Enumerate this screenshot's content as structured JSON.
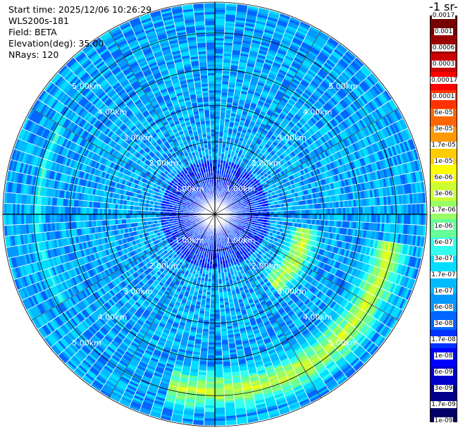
{
  "info": {
    "start_time": "Start time: 2025/12/06 10:26:29",
    "instrument": "WLS200s-181",
    "field": "Field: BETA",
    "elevation": "Elevation(deg): 35.00",
    "nrays": "NRays: 120"
  },
  "chart_data": {
    "type": "heatmap",
    "projection": "polar (PPI scan)",
    "nrays": 120,
    "elevation_deg": 35.0,
    "range_ring_labels": [
      "1.00km",
      "2.00km",
      "3.00km",
      "4.00km",
      "5.00km"
    ],
    "max_range_km": 5.85,
    "colorbar": {
      "title": "-1 sr-",
      "scale": "log",
      "colors": [
        "#000066",
        "#00008b",
        "#0000cd",
        "#0000ff",
        "#0033ff",
        "#0066ff",
        "#0099ff",
        "#00bbff",
        "#00ddff",
        "#33ffee",
        "#66ff99",
        "#99ff66",
        "#ccff33",
        "#ffff00",
        "#ffcc00",
        "#ff9900",
        "#ff6600",
        "#ff3300",
        "#ff0000",
        "#cc0000",
        "#990000",
        "#770000"
      ],
      "tick_labels": [
        "1e-09",
        "1.7e-09",
        "3e-09",
        "6e-09",
        "1e-08",
        "1.7e-08",
        "3e-08",
        "6e-08",
        "1e-07",
        "1.7e-07",
        "3e-07",
        "6e-07",
        "1e-06",
        "1.7e-06",
        "3e-06",
        "6e-06",
        "1e-05",
        "1.7e-05",
        "3e-05",
        "6e-05",
        "0.0001",
        "0.00017",
        "0.0003",
        "0.0006",
        "0.001",
        "0.0017"
      ]
    },
    "background_level": "3e-08",
    "features": [
      {
        "description": "enhanced backscatter arc",
        "range_km": [
          4.2,
          5.5
        ],
        "azimuth_deg": [
          100,
          195
        ],
        "peak_value": "1.7e-06"
      },
      {
        "description": "enhanced backscatter arc",
        "range_km": [
          2.0,
          3.0
        ],
        "azimuth_deg": [
          100,
          140
        ],
        "peak_value": "1.7e-06"
      },
      {
        "description": "weak ring",
        "range_km": [
          4.7,
          5.0
        ],
        "azimuth_deg": [
          240,
          300
        ],
        "peak_value": "1e-07"
      }
    ]
  }
}
